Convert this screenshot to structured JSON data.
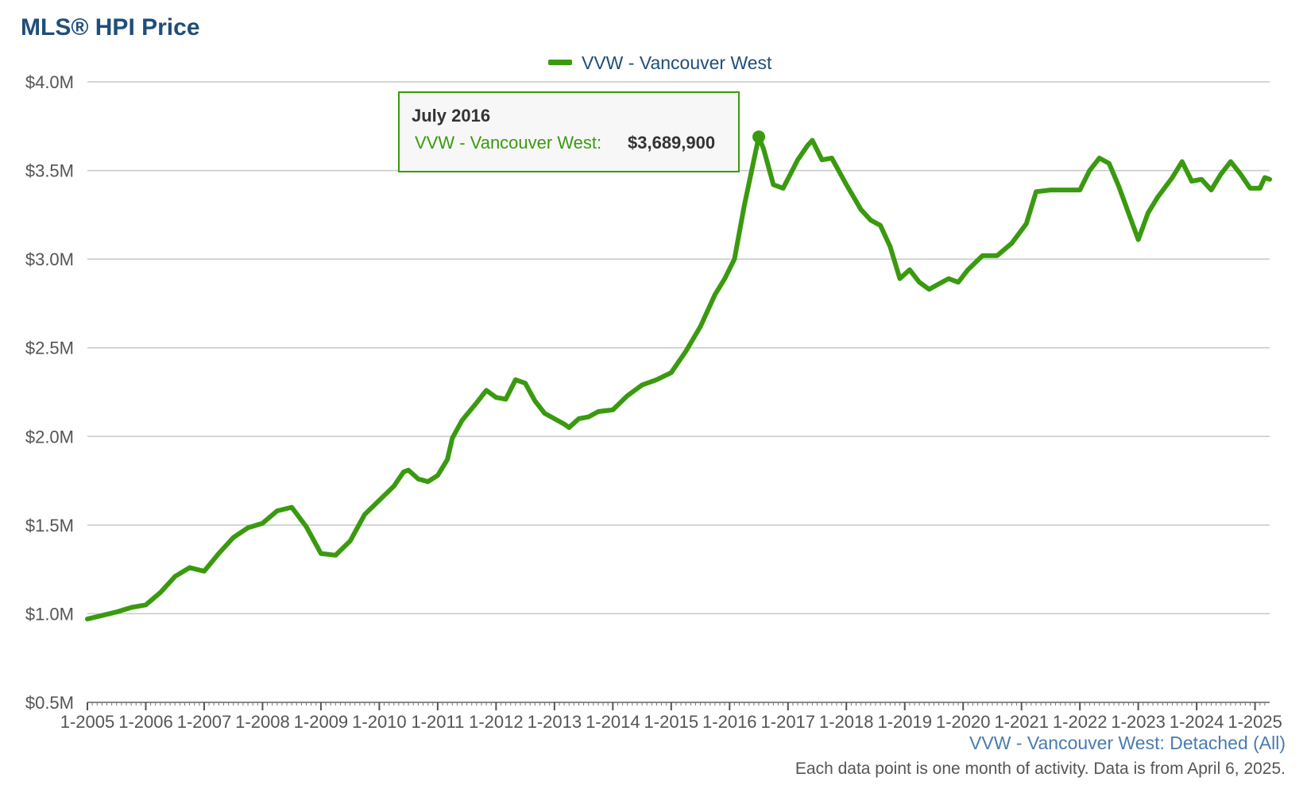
{
  "title": "MLS® HPI Price",
  "footer": {
    "series_label": "VVW - Vancouver West: Detached (All)",
    "note": "Each data point is one month of activity. Data is from April 6, 2025."
  },
  "tooltip": {
    "date": "July 2016",
    "series": "VVW - Vancouver West:",
    "value": "$3,689,900"
  },
  "colors": {
    "line": "#3a9a0f",
    "grid": "#c8c8c8",
    "axis_text": "#555555",
    "title": "#1f4e79",
    "legend_text": "#1f4e79"
  },
  "chart_data": {
    "type": "line",
    "title": "MLS® HPI Price",
    "xlabel": "",
    "ylabel": "",
    "ylim": [
      500000,
      4000000
    ],
    "y_ticks": [
      500000,
      1000000,
      1500000,
      2000000,
      2500000,
      3000000,
      3500000,
      4000000
    ],
    "y_tick_labels": [
      "$0.5M",
      "$1.0M",
      "$1.5M",
      "$2.0M",
      "$2.5M",
      "$3.0M",
      "$3.5M",
      "$4.0M"
    ],
    "x_tick_labels": [
      "1-2005",
      "1-2006",
      "1-2007",
      "1-2008",
      "1-2009",
      "1-2010",
      "1-2011",
      "1-2012",
      "1-2013",
      "1-2014",
      "1-2015",
      "1-2016",
      "1-2017",
      "1-2018",
      "1-2019",
      "1-2020",
      "1-2021",
      "1-2022",
      "1-2023",
      "1-2024",
      "1-2025"
    ],
    "legend": "top-center",
    "grid": true,
    "highlight": {
      "x": "2016-07",
      "y": 3689900
    },
    "series": [
      {
        "name": "VVW - Vancouver West",
        "color": "#3a9a0f",
        "points": [
          [
            "2005-01",
            970000
          ],
          [
            "2005-04",
            990000
          ],
          [
            "2005-07",
            1010000
          ],
          [
            "2005-10",
            1035000
          ],
          [
            "2006-01",
            1050000
          ],
          [
            "2006-04",
            1120000
          ],
          [
            "2006-07",
            1210000
          ],
          [
            "2006-10",
            1260000
          ],
          [
            "2007-01",
            1240000
          ],
          [
            "2007-04",
            1340000
          ],
          [
            "2007-07",
            1430000
          ],
          [
            "2007-10",
            1485000
          ],
          [
            "2008-01",
            1510000
          ],
          [
            "2008-04",
            1580000
          ],
          [
            "2008-07",
            1600000
          ],
          [
            "2008-10",
            1490000
          ],
          [
            "2009-01",
            1340000
          ],
          [
            "2009-04",
            1330000
          ],
          [
            "2009-07",
            1410000
          ],
          [
            "2009-10",
            1560000
          ],
          [
            "2010-01",
            1640000
          ],
          [
            "2010-04",
            1720000
          ],
          [
            "2010-06",
            1800000
          ],
          [
            "2010-07",
            1810000
          ],
          [
            "2010-09",
            1760000
          ],
          [
            "2010-11",
            1745000
          ],
          [
            "2011-01",
            1780000
          ],
          [
            "2011-03",
            1870000
          ],
          [
            "2011-04",
            1990000
          ],
          [
            "2011-06",
            2090000
          ],
          [
            "2011-09",
            2190000
          ],
          [
            "2011-11",
            2260000
          ],
          [
            "2012-01",
            2220000
          ],
          [
            "2012-03",
            2210000
          ],
          [
            "2012-05",
            2320000
          ],
          [
            "2012-07",
            2300000
          ],
          [
            "2012-09",
            2200000
          ],
          [
            "2012-11",
            2130000
          ],
          [
            "2013-01",
            2100000
          ],
          [
            "2013-03",
            2070000
          ],
          [
            "2013-04",
            2050000
          ],
          [
            "2013-06",
            2100000
          ],
          [
            "2013-08",
            2110000
          ],
          [
            "2013-10",
            2140000
          ],
          [
            "2014-01",
            2150000
          ],
          [
            "2014-04",
            2230000
          ],
          [
            "2014-07",
            2290000
          ],
          [
            "2014-10",
            2320000
          ],
          [
            "2015-01",
            2360000
          ],
          [
            "2015-04",
            2480000
          ],
          [
            "2015-07",
            2620000
          ],
          [
            "2015-10",
            2800000
          ],
          [
            "2015-12",
            2890000
          ],
          [
            "2016-02",
            3000000
          ],
          [
            "2016-04",
            3300000
          ],
          [
            "2016-07",
            3689900
          ],
          [
            "2016-08",
            3620000
          ],
          [
            "2016-10",
            3420000
          ],
          [
            "2016-12",
            3400000
          ],
          [
            "2017-03",
            3560000
          ],
          [
            "2017-05",
            3640000
          ],
          [
            "2017-06",
            3670000
          ],
          [
            "2017-08",
            3560000
          ],
          [
            "2017-10",
            3570000
          ],
          [
            "2018-01",
            3420000
          ],
          [
            "2018-04",
            3280000
          ],
          [
            "2018-06",
            3220000
          ],
          [
            "2018-08",
            3190000
          ],
          [
            "2018-10",
            3070000
          ],
          [
            "2018-12",
            2890000
          ],
          [
            "2019-02",
            2940000
          ],
          [
            "2019-04",
            2870000
          ],
          [
            "2019-06",
            2830000
          ],
          [
            "2019-08",
            2860000
          ],
          [
            "2019-10",
            2890000
          ],
          [
            "2019-12",
            2870000
          ],
          [
            "2020-02",
            2940000
          ],
          [
            "2020-05",
            3020000
          ],
          [
            "2020-08",
            3020000
          ],
          [
            "2020-11",
            3090000
          ],
          [
            "2021-02",
            3200000
          ],
          [
            "2021-04",
            3380000
          ],
          [
            "2021-07",
            3390000
          ],
          [
            "2021-10",
            3390000
          ],
          [
            "2022-01",
            3390000
          ],
          [
            "2022-03",
            3500000
          ],
          [
            "2022-05",
            3570000
          ],
          [
            "2022-07",
            3540000
          ],
          [
            "2022-09",
            3410000
          ],
          [
            "2022-11",
            3260000
          ],
          [
            "2023-01",
            3110000
          ],
          [
            "2023-03",
            3260000
          ],
          [
            "2023-05",
            3350000
          ],
          [
            "2023-08",
            3460000
          ],
          [
            "2023-10",
            3550000
          ],
          [
            "2023-12",
            3440000
          ],
          [
            "2024-02",
            3450000
          ],
          [
            "2024-04",
            3390000
          ],
          [
            "2024-06",
            3480000
          ],
          [
            "2024-08",
            3550000
          ],
          [
            "2024-10",
            3480000
          ],
          [
            "2024-12",
            3400000
          ],
          [
            "2025-02",
            3400000
          ],
          [
            "2025-03",
            3460000
          ],
          [
            "2025-04",
            3450000
          ]
        ]
      }
    ]
  }
}
